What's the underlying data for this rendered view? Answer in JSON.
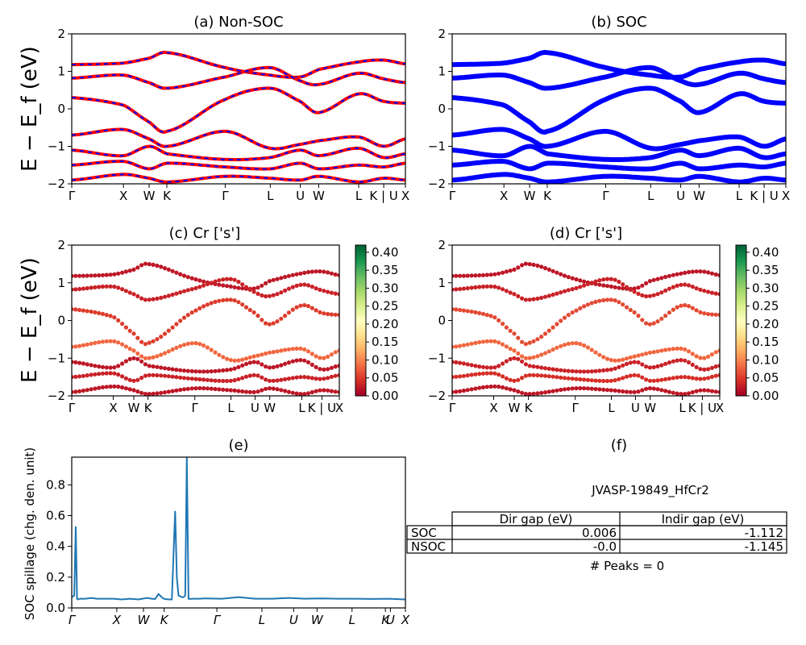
{
  "labels": {
    "path": [
      "Γ",
      "X",
      "W",
      "K",
      "Γ",
      "L",
      "U",
      "W",
      "L",
      "K | U",
      "X"
    ],
    "path_e": [
      "Γ",
      "X",
      "W",
      "K",
      "Γ",
      "L",
      "U",
      "W",
      "L",
      "K",
      "U",
      "X"
    ]
  },
  "chart_data": [
    {
      "type": "line",
      "title": "(a) Non-SOC",
      "ylabel": "E − E_f (eV)",
      "ylim": [
        -2,
        2
      ],
      "yticks": [
        -2,
        -1,
        0,
        1,
        2
      ],
      "x_ticks": [
        "Γ",
        "X",
        "W",
        "K",
        "Γ",
        "L",
        "U",
        "W",
        "L",
        "K | U",
        "X"
      ],
      "series": [
        {
          "line_colors": [
            "#ff0000",
            "#0000ff"
          ],
          "style": "red solid with blue dashed overlay",
          "bands": [
            [
              1.18,
              1.22,
              1.35,
              1.5,
              1.1,
              0.9,
              0.85,
              1.05,
              1.25,
              1.3,
              1.2
            ],
            [
              0.82,
              0.9,
              0.7,
              0.55,
              0.85,
              1.1,
              0.75,
              0.65,
              0.95,
              0.8,
              0.7
            ],
            [
              0.3,
              0.1,
              -0.35,
              -0.6,
              0.25,
              0.55,
              0.2,
              -0.1,
              0.4,
              0.2,
              0.15
            ],
            [
              -0.7,
              -0.55,
              -0.8,
              -1.0,
              -0.6,
              -1.05,
              -0.95,
              -0.85,
              -0.75,
              -1.0,
              -0.8
            ],
            [
              -1.1,
              -1.25,
              -1.0,
              -1.2,
              -1.35,
              -1.3,
              -1.1,
              -1.25,
              -1.05,
              -1.3,
              -1.2
            ],
            [
              -1.5,
              -1.4,
              -1.6,
              -1.45,
              -1.55,
              -1.6,
              -1.45,
              -1.6,
              -1.5,
              -1.55,
              -1.45
            ],
            [
              -1.9,
              -1.75,
              -1.85,
              -1.95,
              -1.8,
              -1.85,
              -1.9,
              -1.8,
              -1.95,
              -1.85,
              -1.9
            ]
          ]
        }
      ]
    },
    {
      "type": "line",
      "title": "(b) SOC",
      "ylim": [
        -2,
        2
      ],
      "yticks": [
        -2,
        -1,
        0,
        1,
        2
      ],
      "x_ticks": [
        "Γ",
        "X",
        "W",
        "K",
        "Γ",
        "L",
        "U",
        "W",
        "L",
        "K | U",
        "X"
      ],
      "series": [
        {
          "line_colors": [
            "#0000ff"
          ],
          "style": "thick blue",
          "bands": [
            [
              1.18,
              1.22,
              1.35,
              1.5,
              1.1,
              0.9,
              0.85,
              1.05,
              1.25,
              1.3,
              1.2
            ],
            [
              0.82,
              0.9,
              0.7,
              0.55,
              0.85,
              1.1,
              0.75,
              0.65,
              0.95,
              0.8,
              0.7
            ],
            [
              0.3,
              0.1,
              -0.35,
              -0.6,
              0.25,
              0.55,
              0.2,
              -0.1,
              0.4,
              0.2,
              0.15
            ],
            [
              -0.7,
              -0.55,
              -0.8,
              -1.0,
              -0.6,
              -1.05,
              -0.95,
              -0.85,
              -0.75,
              -1.0,
              -0.8
            ],
            [
              -1.1,
              -1.25,
              -1.0,
              -1.2,
              -1.35,
              -1.3,
              -1.1,
              -1.25,
              -1.05,
              -1.3,
              -1.2
            ],
            [
              -1.5,
              -1.4,
              -1.6,
              -1.45,
              -1.55,
              -1.6,
              -1.45,
              -1.6,
              -1.5,
              -1.55,
              -1.45
            ],
            [
              -1.9,
              -1.75,
              -1.85,
              -1.95,
              -1.8,
              -1.85,
              -1.9,
              -1.8,
              -1.95,
              -1.85,
              -1.9
            ]
          ]
        }
      ]
    },
    {
      "type": "scatter",
      "title": "(c)  Cr ['s']",
      "ylabel": "E − E_f (eV)",
      "ylim": [
        -2,
        2
      ],
      "yticks": [
        -2,
        -1,
        0,
        1,
        2
      ],
      "x_ticks": [
        "Γ",
        "X",
        "W",
        "K",
        "Γ",
        "L",
        "U",
        "W",
        "L",
        "K | U",
        "X"
      ],
      "colorbar": {
        "min": 0.0,
        "max": 0.42,
        "ticks": [
          "0.00",
          "0.05",
          "0.10",
          "0.15",
          "0.20",
          "0.25",
          "0.30",
          "0.35",
          "0.40"
        ],
        "cmap": [
          "#a50026",
          "#d73027",
          "#f46d43",
          "#fdae61",
          "#fee08b",
          "#ffffbf",
          "#d9ef8b",
          "#a6d96a",
          "#66bd63",
          "#1a9850",
          "#006837"
        ]
      },
      "series": [
        {
          "weights": [
            0.02,
            0.03,
            0.05,
            0.08,
            0.02,
            0.03,
            0.02
          ],
          "bands": [
            [
              1.18,
              1.22,
              1.35,
              1.5,
              1.1,
              0.9,
              0.85,
              1.05,
              1.25,
              1.3,
              1.2
            ],
            [
              0.82,
              0.9,
              0.7,
              0.55,
              0.85,
              1.1,
              0.75,
              0.65,
              0.95,
              0.8,
              0.7
            ],
            [
              0.3,
              0.1,
              -0.35,
              -0.6,
              0.25,
              0.55,
              0.2,
              -0.1,
              0.4,
              0.2,
              0.15
            ],
            [
              -0.7,
              -0.55,
              -0.8,
              -1.0,
              -0.6,
              -1.05,
              -0.95,
              -0.85,
              -0.75,
              -1.0,
              -0.8
            ],
            [
              -1.1,
              -1.25,
              -1.0,
              -1.2,
              -1.35,
              -1.3,
              -1.1,
              -1.25,
              -1.05,
              -1.3,
              -1.2
            ],
            [
              -1.5,
              -1.4,
              -1.6,
              -1.45,
              -1.55,
              -1.6,
              -1.45,
              -1.6,
              -1.5,
              -1.55,
              -1.45
            ],
            [
              -1.9,
              -1.75,
              -1.85,
              -1.95,
              -1.8,
              -1.85,
              -1.9,
              -1.8,
              -1.95,
              -1.85,
              -1.9
            ]
          ]
        }
      ]
    },
    {
      "type": "scatter",
      "title": "(d) Cr ['s']",
      "ylim": [
        -2,
        2
      ],
      "yticks": [
        -2,
        -1,
        0,
        1,
        2
      ],
      "x_ticks": [
        "Γ",
        "X",
        "W",
        "K",
        "Γ",
        "L",
        "U",
        "W",
        "L",
        "K | U",
        "X"
      ],
      "colorbar": {
        "min": 0.0,
        "max": 0.42,
        "ticks": [
          "0.00",
          "0.05",
          "0.10",
          "0.15",
          "0.20",
          "0.25",
          "0.30",
          "0.35",
          "0.40"
        ]
      },
      "series": [
        {
          "weights": [
            0.02,
            0.03,
            0.06,
            0.08,
            0.03,
            0.04,
            0.02
          ],
          "bands": [
            [
              1.18,
              1.22,
              1.35,
              1.5,
              1.1,
              0.9,
              0.85,
              1.05,
              1.25,
              1.3,
              1.2
            ],
            [
              0.82,
              0.9,
              0.7,
              0.55,
              0.85,
              1.1,
              0.75,
              0.65,
              0.95,
              0.8,
              0.7
            ],
            [
              0.3,
              0.1,
              -0.35,
              -0.6,
              0.25,
              0.55,
              0.2,
              -0.1,
              0.4,
              0.2,
              0.15
            ],
            [
              -0.7,
              -0.55,
              -0.8,
              -1.0,
              -0.6,
              -1.05,
              -0.95,
              -0.85,
              -0.75,
              -1.0,
              -0.8
            ],
            [
              -1.1,
              -1.25,
              -1.0,
              -1.2,
              -1.35,
              -1.3,
              -1.1,
              -1.25,
              -1.05,
              -1.3,
              -1.2
            ],
            [
              -1.5,
              -1.4,
              -1.6,
              -1.45,
              -1.55,
              -1.6,
              -1.45,
              -1.6,
              -1.5,
              -1.55,
              -1.45
            ],
            [
              -1.9,
              -1.75,
              -1.85,
              -1.95,
              -1.8,
              -1.85,
              -1.9,
              -1.8,
              -1.95,
              -1.85,
              -1.9
            ]
          ]
        }
      ]
    },
    {
      "type": "line",
      "title": "(e)",
      "ylabel": "SOC spillage (chg. den. unit)",
      "ylim": [
        0,
        0.98
      ],
      "yticks": [
        "0.0",
        "0.2",
        "0.4",
        "0.6",
        "0.8"
      ],
      "x_ticks": [
        "Γ",
        "X",
        "W",
        "K",
        "Γ",
        "L",
        "U",
        "W",
        "L",
        "K",
        "U",
        "X"
      ],
      "series": [
        {
          "color": "#1f77b4",
          "x": [
            0,
            1.5,
            2.4,
            3.2,
            3.8,
            5,
            8,
            12,
            15,
            20,
            25,
            30,
            35,
            40,
            45,
            48,
            50,
            52,
            55,
            58,
            60,
            62,
            63,
            64,
            65,
            66,
            67,
            68,
            69,
            70,
            71,
            72,
            73,
            74,
            76,
            80,
            90,
            100,
            110,
            120,
            130,
            140,
            150,
            160,
            170,
            180,
            190,
            200
          ],
          "y": [
            0.07,
            0.08,
            0.53,
            0.06,
            0.055,
            0.06,
            0.06,
            0.065,
            0.06,
            0.06,
            0.06,
            0.055,
            0.06,
            0.055,
            0.065,
            0.06,
            0.058,
            0.09,
            0.06,
            0.055,
            0.055,
            0.63,
            0.2,
            0.08,
            0.075,
            0.07,
            0.07,
            0.08,
            0.98,
            0.06,
            0.058,
            0.06,
            0.06,
            0.06,
            0.06,
            0.062,
            0.06,
            0.07,
            0.06,
            0.06,
            0.065,
            0.06,
            0.062,
            0.06,
            0.06,
            0.058,
            0.06,
            0.055
          ]
        }
      ]
    },
    {
      "type": "table",
      "title": "(f)",
      "caption": "JVASP-19849_HfCr2",
      "columns": [
        "Dir gap (eV)",
        "Indir gap (eV)"
      ],
      "rows": [
        {
          "label": "SOC",
          "values": [
            "0.006",
            "-1.112"
          ]
        },
        {
          "label": "NSOC",
          "values": [
            "-0.0",
            "-1.145"
          ]
        }
      ],
      "footer": "# Peaks = 0"
    }
  ]
}
